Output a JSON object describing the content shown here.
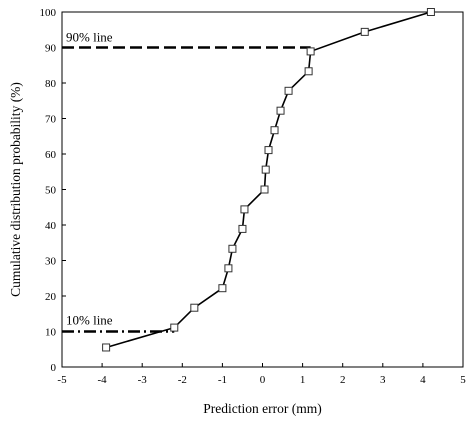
{
  "chart_data": {
    "type": "line",
    "xlabel": "Prediction error (mm)",
    "ylabel": "Cumulative distribution probability (%)",
    "xlim": [
      -5,
      5
    ],
    "ylim": [
      0,
      100
    ],
    "xticks": [
      "-5",
      "-4",
      "-3",
      "-2",
      "-1",
      "0",
      "1",
      "2",
      "3",
      "4",
      "5"
    ],
    "yticks": [
      "0",
      "10",
      "20",
      "30",
      "40",
      "50",
      "60",
      "70",
      "80",
      "90",
      "100"
    ],
    "grid": false,
    "series": [
      {
        "marker": "open-square",
        "points": [
          {
            "x": -3.9,
            "y": 5.5
          },
          {
            "x": -2.2,
            "y": 11.1
          },
          {
            "x": -1.7,
            "y": 16.7
          },
          {
            "x": -1.0,
            "y": 22.2
          },
          {
            "x": -0.85,
            "y": 27.8
          },
          {
            "x": -0.75,
            "y": 33.3
          },
          {
            "x": -0.5,
            "y": 38.9
          },
          {
            "x": -0.45,
            "y": 44.4
          },
          {
            "x": 0.05,
            "y": 50.0
          },
          {
            "x": 0.08,
            "y": 55.6
          },
          {
            "x": 0.15,
            "y": 61.1
          },
          {
            "x": 0.3,
            "y": 66.7
          },
          {
            "x": 0.45,
            "y": 72.2
          },
          {
            "x": 0.65,
            "y": 77.8
          },
          {
            "x": 1.15,
            "y": 83.3
          },
          {
            "x": 1.2,
            "y": 88.9
          },
          {
            "x": 2.55,
            "y": 94.4
          },
          {
            "x": 4.2,
            "y": 100.0
          }
        ]
      }
    ],
    "reference_lines": [
      {
        "label": "90% line",
        "y": 90,
        "x_start": -5,
        "x_end": 1.2,
        "style": "dashed"
      },
      {
        "label": "10% line",
        "y": 10,
        "x_start": -5,
        "x_end": -2.2,
        "style": "dash-dot"
      }
    ]
  }
}
